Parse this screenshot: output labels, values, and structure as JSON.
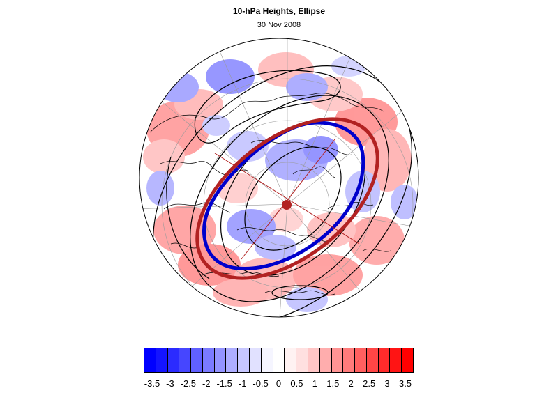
{
  "title": "10-hPa Heights, Ellipse",
  "subtitle": "30 Nov 2008",
  "colors": {
    "ellipse_observed": "#0000cc",
    "ellipse_fit": "#b22222",
    "contour": "#000000",
    "coast": "#000000",
    "graticule": "#9a9a9a"
  },
  "colorbar": {
    "colors": [
      "#0000ff",
      "#1414ff",
      "#2b2bff",
      "#4646ff",
      "#6060ff",
      "#7b7bff",
      "#9494ff",
      "#adadff",
      "#c7c7ff",
      "#e1e1ff",
      "#f5f5ff",
      "#ffffff",
      "#fff2f2",
      "#ffe0e0",
      "#ffc6c6",
      "#ffadad",
      "#ff9494",
      "#ff7b7b",
      "#ff6060",
      "#ff4646",
      "#ff2b2b",
      "#ff1414",
      "#ff0000"
    ],
    "labels": [
      "-3.5",
      "-3",
      "-2.5",
      "-2",
      "-1.5",
      "-1",
      "-0.5",
      "0",
      "0.5",
      "1",
      "1.5",
      "2",
      "2.5",
      "3",
      "3.5"
    ]
  }
}
